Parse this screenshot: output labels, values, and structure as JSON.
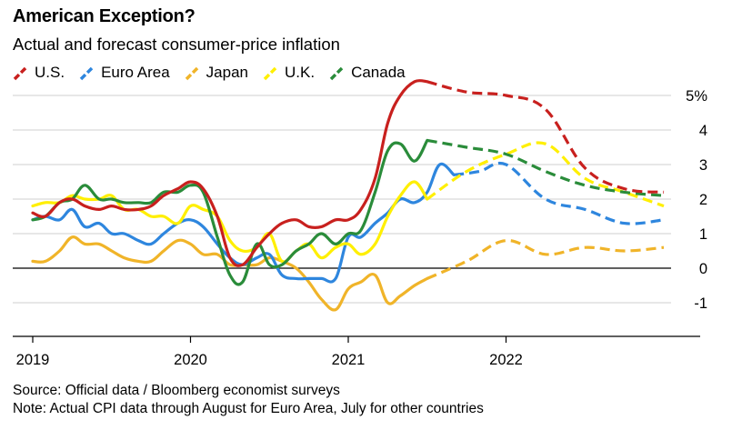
{
  "title": "American Exception?",
  "subtitle": "Actual and forecast consumer-price inflation",
  "source": "Source: Official data / Bloomberg economist surveys",
  "note": "Note: Actual CPI data through August for Euro Area, July for other countries",
  "chart_data": {
    "type": "line",
    "title": "American Exception?",
    "subtitle": "Actual and forecast consumer-price inflation",
    "ylim": [
      -2,
      5
    ],
    "yticks": [
      -1,
      0,
      1,
      2,
      3,
      4,
      5
    ],
    "ytick_labels": [
      "-1",
      "0",
      "1",
      "2",
      "3",
      "4",
      "5%"
    ],
    "xlim": [
      2019,
      2023
    ],
    "xticks": [
      2019,
      2020,
      2021,
      2022
    ],
    "xtick_labels": [
      "2019",
      "2020",
      "2021",
      "2022"
    ],
    "grid": true,
    "legend_position": "top-left",
    "series": [
      {
        "name": "U.S.",
        "color": "#c8201e",
        "actual": [
          [
            2019.0,
            1.6
          ],
          [
            2019.08,
            1.5
          ],
          [
            2019.17,
            1.9
          ],
          [
            2019.25,
            2.0
          ],
          [
            2019.33,
            1.8
          ],
          [
            2019.42,
            1.7
          ],
          [
            2019.5,
            1.8
          ],
          [
            2019.58,
            1.7
          ],
          [
            2019.67,
            1.7
          ],
          [
            2019.75,
            1.8
          ],
          [
            2019.83,
            2.1
          ],
          [
            2019.92,
            2.3
          ],
          [
            2020.0,
            2.5
          ],
          [
            2020.08,
            2.3
          ],
          [
            2020.17,
            1.5
          ],
          [
            2020.25,
            0.3
          ],
          [
            2020.33,
            0.1
          ],
          [
            2020.42,
            0.6
          ],
          [
            2020.5,
            1.0
          ],
          [
            2020.58,
            1.3
          ],
          [
            2020.67,
            1.4
          ],
          [
            2020.75,
            1.2
          ],
          [
            2020.83,
            1.2
          ],
          [
            2020.92,
            1.4
          ],
          [
            2021.0,
            1.4
          ],
          [
            2021.08,
            1.7
          ],
          [
            2021.17,
            2.6
          ],
          [
            2021.25,
            4.2
          ],
          [
            2021.33,
            5.0
          ],
          [
            2021.42,
            5.4
          ],
          [
            2021.5,
            5.4
          ]
        ],
        "forecast": [
          [
            2021.5,
            5.4
          ],
          [
            2021.75,
            5.1
          ],
          [
            2022.0,
            5.0
          ],
          [
            2022.25,
            4.6
          ],
          [
            2022.5,
            2.9
          ],
          [
            2022.75,
            2.3
          ],
          [
            2023.0,
            2.2
          ]
        ]
      },
      {
        "name": "Euro Area",
        "color": "#2e86de",
        "actual": [
          [
            2019.0,
            1.4
          ],
          [
            2019.08,
            1.5
          ],
          [
            2019.17,
            1.4
          ],
          [
            2019.25,
            1.7
          ],
          [
            2019.33,
            1.2
          ],
          [
            2019.42,
            1.3
          ],
          [
            2019.5,
            1.0
          ],
          [
            2019.58,
            1.0
          ],
          [
            2019.67,
            0.8
          ],
          [
            2019.75,
            0.7
          ],
          [
            2019.83,
            1.0
          ],
          [
            2019.92,
            1.3
          ],
          [
            2020.0,
            1.4
          ],
          [
            2020.08,
            1.2
          ],
          [
            2020.17,
            0.7
          ],
          [
            2020.25,
            0.3
          ],
          [
            2020.33,
            0.1
          ],
          [
            2020.42,
            0.3
          ],
          [
            2020.5,
            0.4
          ],
          [
            2020.58,
            -0.2
          ],
          [
            2020.67,
            -0.3
          ],
          [
            2020.75,
            -0.3
          ],
          [
            2020.83,
            -0.3
          ],
          [
            2020.92,
            -0.3
          ],
          [
            2021.0,
            0.9
          ],
          [
            2021.08,
            0.9
          ],
          [
            2021.17,
            1.3
          ],
          [
            2021.25,
            1.6
          ],
          [
            2021.33,
            2.0
          ],
          [
            2021.42,
            1.9
          ],
          [
            2021.5,
            2.2
          ],
          [
            2021.58,
            3.0
          ],
          [
            2021.67,
            2.7
          ]
        ],
        "forecast": [
          [
            2021.67,
            2.7
          ],
          [
            2021.83,
            2.8
          ],
          [
            2022.0,
            3.0
          ],
          [
            2022.25,
            2.0
          ],
          [
            2022.5,
            1.7
          ],
          [
            2022.75,
            1.3
          ],
          [
            2023.0,
            1.4
          ]
        ]
      },
      {
        "name": "Japan",
        "color": "#f0b429",
        "actual": [
          [
            2019.0,
            0.2
          ],
          [
            2019.08,
            0.2
          ],
          [
            2019.17,
            0.5
          ],
          [
            2019.25,
            0.9
          ],
          [
            2019.33,
            0.7
          ],
          [
            2019.42,
            0.7
          ],
          [
            2019.5,
            0.5
          ],
          [
            2019.58,
            0.3
          ],
          [
            2019.67,
            0.2
          ],
          [
            2019.75,
            0.2
          ],
          [
            2019.83,
            0.5
          ],
          [
            2019.92,
            0.8
          ],
          [
            2020.0,
            0.7
          ],
          [
            2020.08,
            0.4
          ],
          [
            2020.17,
            0.4
          ],
          [
            2020.25,
            0.1
          ],
          [
            2020.33,
            0.1
          ],
          [
            2020.42,
            0.1
          ],
          [
            2020.5,
            0.3
          ],
          [
            2020.58,
            0.2
          ],
          [
            2020.67,
            0.0
          ],
          [
            2020.75,
            -0.4
          ],
          [
            2020.83,
            -0.9
          ],
          [
            2020.92,
            -1.2
          ],
          [
            2021.0,
            -0.6
          ],
          [
            2021.08,
            -0.4
          ],
          [
            2021.17,
            -0.2
          ],
          [
            2021.25,
            -1.0
          ],
          [
            2021.33,
            -0.8
          ],
          [
            2021.42,
            -0.5
          ],
          [
            2021.5,
            -0.3
          ]
        ],
        "forecast": [
          [
            2021.5,
            -0.3
          ],
          [
            2021.75,
            0.2
          ],
          [
            2022.0,
            0.8
          ],
          [
            2022.25,
            0.4
          ],
          [
            2022.5,
            0.6
          ],
          [
            2022.75,
            0.5
          ],
          [
            2023.0,
            0.6
          ]
        ]
      },
      {
        "name": "U.K.",
        "color": "#ffef00",
        "actual": [
          [
            2019.0,
            1.8
          ],
          [
            2019.08,
            1.9
          ],
          [
            2019.17,
            1.9
          ],
          [
            2019.25,
            2.1
          ],
          [
            2019.33,
            2.0
          ],
          [
            2019.42,
            2.0
          ],
          [
            2019.5,
            2.1
          ],
          [
            2019.58,
            1.7
          ],
          [
            2019.67,
            1.7
          ],
          [
            2019.75,
            1.5
          ],
          [
            2019.83,
            1.5
          ],
          [
            2019.92,
            1.3
          ],
          [
            2020.0,
            1.8
          ],
          [
            2020.08,
            1.7
          ],
          [
            2020.17,
            1.5
          ],
          [
            2020.25,
            0.8
          ],
          [
            2020.33,
            0.5
          ],
          [
            2020.42,
            0.6
          ],
          [
            2020.5,
            1.0
          ],
          [
            2020.58,
            0.2
          ],
          [
            2020.67,
            0.5
          ],
          [
            2020.75,
            0.7
          ],
          [
            2020.83,
            0.3
          ],
          [
            2020.92,
            0.6
          ],
          [
            2021.0,
            0.7
          ],
          [
            2021.08,
            0.4
          ],
          [
            2021.17,
            0.7
          ],
          [
            2021.25,
            1.5
          ],
          [
            2021.33,
            2.1
          ],
          [
            2021.42,
            2.5
          ],
          [
            2021.5,
            2.0
          ]
        ],
        "forecast": [
          [
            2021.5,
            2.0
          ],
          [
            2021.75,
            2.8
          ],
          [
            2022.0,
            3.3
          ],
          [
            2022.25,
            3.6
          ],
          [
            2022.5,
            2.6
          ],
          [
            2022.75,
            2.2
          ],
          [
            2023.0,
            1.8
          ]
        ]
      },
      {
        "name": "Canada",
        "color": "#2a8c3a",
        "actual": [
          [
            2019.0,
            1.4
          ],
          [
            2019.08,
            1.5
          ],
          [
            2019.17,
            1.9
          ],
          [
            2019.25,
            2.0
          ],
          [
            2019.33,
            2.4
          ],
          [
            2019.42,
            2.0
          ],
          [
            2019.5,
            2.0
          ],
          [
            2019.58,
            1.9
          ],
          [
            2019.67,
            1.9
          ],
          [
            2019.75,
            1.9
          ],
          [
            2019.83,
            2.2
          ],
          [
            2019.92,
            2.2
          ],
          [
            2020.0,
            2.4
          ],
          [
            2020.08,
            2.2
          ],
          [
            2020.17,
            0.9
          ],
          [
            2020.25,
            -0.2
          ],
          [
            2020.33,
            -0.4
          ],
          [
            2020.42,
            0.7
          ],
          [
            2020.5,
            0.1
          ],
          [
            2020.58,
            0.1
          ],
          [
            2020.67,
            0.5
          ],
          [
            2020.75,
            0.7
          ],
          [
            2020.83,
            1.0
          ],
          [
            2020.92,
            0.7
          ],
          [
            2021.0,
            1.0
          ],
          [
            2021.08,
            1.1
          ],
          [
            2021.17,
            2.2
          ],
          [
            2021.25,
            3.4
          ],
          [
            2021.33,
            3.6
          ],
          [
            2021.42,
            3.1
          ],
          [
            2021.5,
            3.7
          ]
        ],
        "forecast": [
          [
            2021.5,
            3.7
          ],
          [
            2021.75,
            3.5
          ],
          [
            2022.0,
            3.3
          ],
          [
            2022.25,
            2.8
          ],
          [
            2022.5,
            2.4
          ],
          [
            2022.75,
            2.2
          ],
          [
            2023.0,
            2.1
          ]
        ]
      }
    ]
  }
}
